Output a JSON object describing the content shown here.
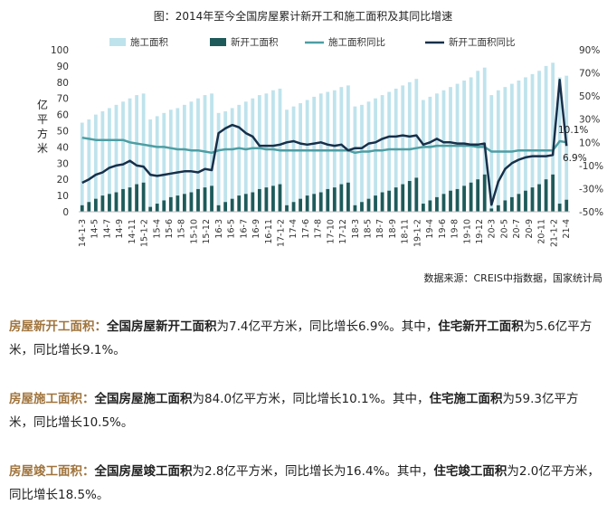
{
  "chart_data": {
    "type": "bar+line",
    "title": "图：2014年至今全国房屋累计新开工和施工面积及其同比增速",
    "source": "数据来源：CREIS中指数据，国家统计局",
    "ylabel": "亿平方米",
    "ylim": [
      0,
      100
    ],
    "y_ticks": [
      0,
      10,
      20,
      30,
      40,
      50,
      60,
      70,
      80,
      90,
      100
    ],
    "y2lim": [
      -50,
      90
    ],
    "y2_ticks": [
      "-50%",
      "-30%",
      "-10%",
      "10%",
      "30%",
      "50%",
      "70%",
      "90%"
    ],
    "grid": false,
    "legend_position": "top",
    "colors": {
      "construction_area": "#bfe3ec",
      "new_start_area": "#1f5a5a",
      "construction_yoy": "#4d9ea3",
      "new_start_yoy": "#17304a"
    },
    "categories": [
      "14-3",
      "14-4",
      "14-5",
      "14-6",
      "14-7",
      "14-8",
      "14-9",
      "14-10",
      "14-11",
      "14-12",
      "15-3",
      "15-4",
      "15-5",
      "15-6",
      "15-7",
      "15-8",
      "15-9",
      "15-10",
      "15-11",
      "15-12",
      "16-3",
      "16-4",
      "16-5",
      "16-6",
      "16-7",
      "16-8",
      "16-9",
      "16-10",
      "16-11",
      "16-12",
      "17-3",
      "17-4",
      "17-5",
      "17-6",
      "17-7",
      "17-8",
      "17-9",
      "17-10",
      "17-11",
      "17-12",
      "18-3",
      "18-4",
      "18-5",
      "18-6",
      "18-7",
      "18-8",
      "18-9",
      "18-10",
      "18-11",
      "18-12",
      "19-3",
      "19-4",
      "19-5",
      "19-6",
      "19-7",
      "19-8",
      "19-9",
      "19-10",
      "19-11",
      "19-12",
      "20-3",
      "20-4",
      "20-5",
      "20-6",
      "20-7",
      "20-8",
      "20-9",
      "20-10",
      "20-11",
      "20-12",
      "21-3",
      "21-4"
    ],
    "x_tick_labels": [
      "14-1-3",
      "14-5",
      "14-7",
      "14-9",
      "14-11",
      "15-1-2",
      "15-4",
      "15-6",
      "15-8",
      "15-10",
      "15-12",
      "16-3",
      "16-5",
      "16-7",
      "16-9",
      "16-11",
      "17-1-2",
      "17-4",
      "17-6",
      "17-8",
      "17-10",
      "17-12",
      "18-3",
      "18-5",
      "18-7",
      "18-9",
      "18-11",
      "19-1-2",
      "19-4",
      "19-6",
      "19-8",
      "19-10",
      "19-12",
      "20-3",
      "20-5",
      "20-7",
      "20-9",
      "20-11",
      "21-1-2",
      "21-4"
    ],
    "series": [
      {
        "name": "施工面积",
        "kind": "bar",
        "axis": "left",
        "values": [
          55,
          57,
          60,
          62,
          64,
          66,
          68,
          70,
          72,
          73,
          57,
          59,
          61,
          63,
          64,
          66,
          68,
          70,
          72,
          73,
          61,
          62,
          64,
          66,
          68,
          70,
          72,
          73,
          75,
          76,
          63,
          65,
          67,
          69,
          71,
          73,
          74,
          75,
          77,
          78,
          65,
          66,
          68,
          70,
          72,
          74,
          76,
          78,
          80,
          82,
          69,
          71,
          73,
          75,
          77,
          79,
          81,
          83,
          87,
          89,
          72,
          75,
          77,
          79,
          81,
          83,
          85,
          87,
          90,
          92,
          83,
          84
        ]
      },
      {
        "name": "新开工面积",
        "kind": "bar",
        "axis": "left",
        "values": [
          4,
          6,
          8,
          10,
          11,
          12,
          14,
          15,
          17,
          18,
          3,
          5,
          7,
          9,
          10,
          11,
          12,
          14,
          15,
          16,
          4,
          6,
          8,
          10,
          11,
          12,
          14,
          15,
          16,
          17,
          4,
          6,
          8,
          10,
          11,
          12,
          14,
          15,
          17,
          18,
          4,
          6,
          8,
          10,
          12,
          13,
          15,
          17,
          19,
          21,
          5,
          7,
          9,
          11,
          13,
          14,
          16,
          18,
          20,
          23,
          2,
          4,
          7,
          9,
          11,
          13,
          15,
          17,
          20,
          23,
          5,
          7.4
        ]
      },
      {
        "name": "施工面积同比",
        "kind": "line",
        "axis": "right",
        "values": [
          14,
          13,
          12,
          12,
          12,
          12,
          12,
          10,
          9,
          8,
          7,
          6,
          6,
          5,
          4,
          4,
          3,
          3,
          2,
          1,
          3,
          4,
          4,
          5,
          4,
          5,
          5,
          4,
          4,
          3,
          3,
          3,
          3,
          3,
          3,
          3,
          3,
          3,
          3,
          3,
          1,
          2,
          2,
          3,
          3,
          4,
          4,
          4,
          4,
          5,
          6,
          6,
          7,
          7,
          7,
          7,
          7,
          7,
          6,
          6,
          2,
          2,
          2,
          2,
          3,
          3,
          3,
          3,
          3,
          3,
          11,
          10.1
        ]
      },
      {
        "name": "新开工面积同比",
        "kind": "line",
        "axis": "right",
        "values": [
          -25,
          -22,
          -18,
          -16,
          -12,
          -10,
          -9,
          -6,
          -10,
          -11,
          -18,
          -19,
          -18,
          -17,
          -16,
          -15,
          -15,
          -16,
          -13,
          -14,
          18,
          22,
          25,
          23,
          18,
          15,
          7,
          7,
          7,
          8,
          10,
          11,
          9,
          8,
          9,
          10,
          8,
          7,
          8,
          3,
          5,
          5,
          9,
          10,
          13,
          15,
          15,
          16,
          15,
          16,
          8,
          10,
          13,
          10,
          10,
          9,
          9,
          8,
          8,
          9,
          -44,
          -24,
          -13,
          -8,
          -5,
          -3,
          -2,
          -2,
          -2,
          -1,
          64,
          6.9
        ]
      }
    ],
    "annotations": [
      "10.1%",
      "6.9%"
    ]
  },
  "paragraphs": [
    {
      "label": "房屋新开工面积：",
      "lead": "全国房屋新开工面积",
      "text1": "为7.4亿平方米，同比增长6.9%。其中，",
      "bold2": "住宅新开工面积",
      "text2": "为5.6亿平方米，同比增长9.1%。"
    },
    {
      "label": "房屋施工面积：",
      "lead": "全国房屋施工面积",
      "text1": "为84.0亿平方米，同比增长10.1%。其中，",
      "bold2": "住宅施工面积",
      "text2": "为59.3亿平方米，同比增长10.5%。"
    },
    {
      "label": "房屋竣工面积：",
      "lead": "全国房屋竣工面积",
      "text1": "为2.8亿平方米，同比增长为16.4%。其中，",
      "bold2": "住宅竣工面积",
      "text2": "为2.0亿平方米，同比增长18.5%。"
    }
  ]
}
